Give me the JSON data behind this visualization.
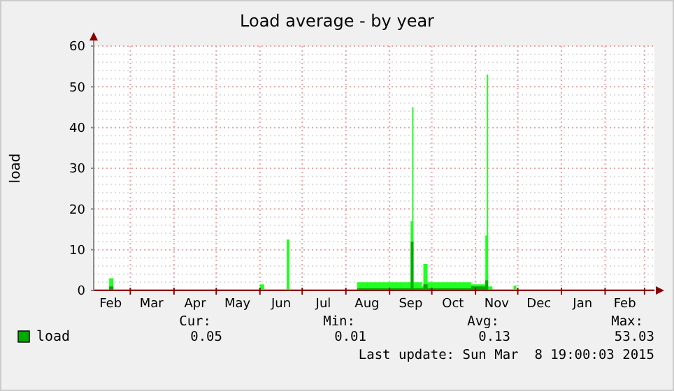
{
  "chart_data": {
    "type": "area",
    "title": "Load average - by year",
    "ylabel": "load",
    "xlim": [
      "2014-02-03",
      "2015-03-08"
    ],
    "ylim": [
      0,
      60
    ],
    "yticks": [
      0,
      {
        "value": 2,
        "label": null
      },
      {
        "value": 4,
        "label": null
      },
      {
        "value": 6,
        "label": null
      },
      {
        "value": 8,
        "label": null
      },
      10,
      {
        "value": 12,
        "label": null
      },
      {
        "value": 14,
        "label": null
      },
      {
        "value": 16,
        "label": null
      },
      {
        "value": 18,
        "label": null
      },
      20,
      {
        "value": 22,
        "label": null
      },
      {
        "value": 24,
        "label": null
      },
      {
        "value": 26,
        "label": null
      },
      {
        "value": 28,
        "label": null
      },
      30,
      {
        "value": 32,
        "label": null
      },
      {
        "value": 34,
        "label": null
      },
      {
        "value": 36,
        "label": null
      },
      {
        "value": 38,
        "label": null
      },
      40,
      {
        "value": 42,
        "label": null
      },
      {
        "value": 44,
        "label": null
      },
      {
        "value": 46,
        "label": null
      },
      {
        "value": 48,
        "label": null
      },
      50,
      {
        "value": 52,
        "label": null
      },
      {
        "value": 54,
        "label": null
      },
      {
        "value": 56,
        "label": null
      },
      {
        "value": 58,
        "label": null
      },
      60
    ],
    "xticks": [
      {
        "value": "2014-02-15",
        "label": "Feb"
      },
      {
        "value": "2014-03-01",
        "label": null
      },
      {
        "value": "2014-03-16",
        "label": "Mar"
      },
      {
        "value": "2014-04-01",
        "label": null
      },
      {
        "value": "2014-04-16",
        "label": "Apr"
      },
      {
        "value": "2014-05-01",
        "label": null
      },
      {
        "value": "2014-05-16",
        "label": "May"
      },
      {
        "value": "2014-06-01",
        "label": null
      },
      {
        "value": "2014-06-16",
        "label": "Jun"
      },
      {
        "value": "2014-07-01",
        "label": null
      },
      {
        "value": "2014-07-16",
        "label": "Jul"
      },
      {
        "value": "2014-08-01",
        "label": null
      },
      {
        "value": "2014-08-16",
        "label": "Aug"
      },
      {
        "value": "2014-09-01",
        "label": null
      },
      {
        "value": "2014-09-16",
        "label": "Sep"
      },
      {
        "value": "2014-10-01",
        "label": null
      },
      {
        "value": "2014-10-16",
        "label": "Oct"
      },
      {
        "value": "2014-11-01",
        "label": null
      },
      {
        "value": "2014-11-16",
        "label": "Nov"
      },
      {
        "value": "2014-12-01",
        "label": null
      },
      {
        "value": "2014-12-16",
        "label": "Dec"
      },
      {
        "value": "2015-01-01",
        "label": null
      },
      {
        "value": "2015-01-16",
        "label": "Jan"
      },
      {
        "value": "2015-02-01",
        "label": null
      },
      {
        "value": "2015-02-15",
        "label": "Feb"
      },
      {
        "value": "2015-03-01",
        "label": null
      }
    ],
    "grid": true,
    "legend": "bottom",
    "series": [
      {
        "color": "#22ff22",
        "x": [
          "2014-02-03",
          "2014-02-14",
          "2014-02-17",
          "2014-06-01",
          "2014-06-04",
          "2014-06-20",
          "2014-06-22",
          "2014-08-09",
          "2014-09-16",
          "2014-09-17",
          "2014-09-18",
          "2014-09-24",
          "2014-09-25",
          "2014-09-28",
          "2014-10-29",
          "2014-11-08",
          "2014-11-09",
          "2014-11-10",
          "2014-11-13",
          "2014-11-28",
          "2014-11-30",
          "2015-03-01",
          "2015-03-08"
        ],
        "values": [
          0.3,
          3,
          0.3,
          1.5,
          0.3,
          12.5,
          0.3,
          2,
          17,
          45,
          2,
          1,
          6.5,
          2,
          1.5,
          13.5,
          53,
          1,
          0.3,
          1.2,
          0.3,
          0.3,
          0.3
        ]
      },
      {
        "name": "load",
        "color": "#00aa00",
        "x": [
          "2014-02-03",
          "2014-02-14",
          "2014-02-17",
          "2014-08-09",
          "2014-09-16",
          "2014-09-18",
          "2014-09-25",
          "2014-09-28",
          "2014-10-29",
          "2014-11-08",
          "2014-11-10",
          "2014-11-13",
          "2015-03-01",
          "2015-03-08"
        ],
        "values": [
          0.1,
          1,
          0.1,
          0.5,
          12,
          0.5,
          1.5,
          0.5,
          1,
          2.5,
          0.2,
          0.1,
          0.1,
          0.1
        ]
      }
    ],
    "annotations": [
      "Cur:",
      "Min:",
      "Avg:",
      "Max:",
      "0.05",
      "0.01",
      "0.13",
      "53.03",
      "Last update: Sun Mar  8 19:00:03 2015"
    ]
  }
}
